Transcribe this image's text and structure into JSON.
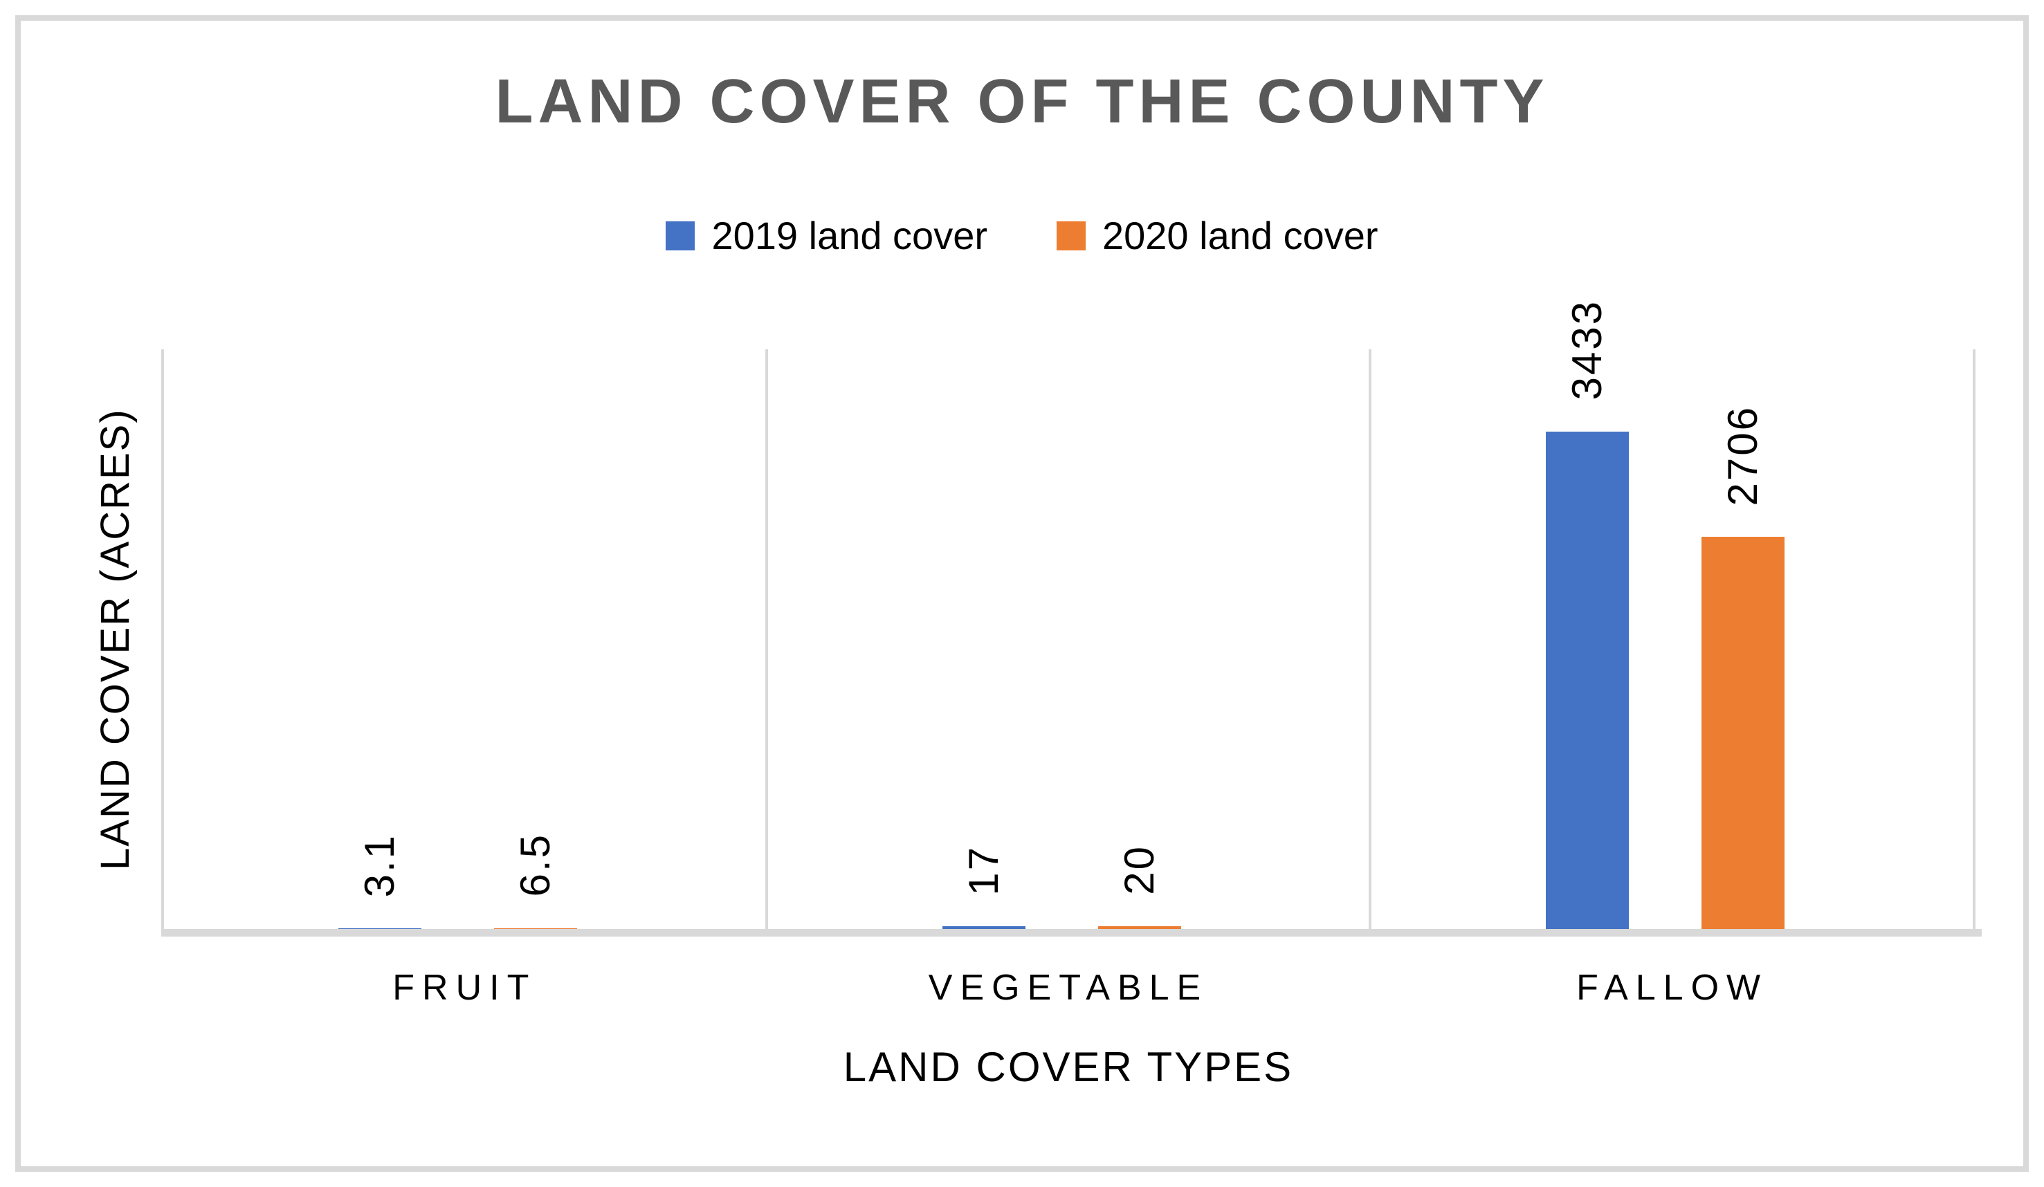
{
  "chart": {
    "title": "LAND COVER OF THE COUNTY",
    "x_axis_title": "LAND COVER TYPES",
    "y_axis_title": "LAND COVER (ACRES)"
  },
  "chart_data": {
    "type": "bar",
    "title": "LAND COVER OF THE COUNTY",
    "categories": [
      "FRUIT",
      "VEGETABLE",
      "FALLOW"
    ],
    "series": [
      {
        "name": "2019 land cover",
        "color": "#4472C4",
        "values": [
          3.1,
          17,
          3433
        ],
        "labels": [
          "3.1",
          "17",
          "3433"
        ]
      },
      {
        "name": "2020 land cover",
        "color": "#ED7D31",
        "values": [
          6.5,
          20,
          2706
        ],
        "labels": [
          "6.5",
          "20",
          "2706"
        ]
      }
    ],
    "xlabel": "LAND COVER TYPES",
    "ylabel": "LAND COVER (ACRES)",
    "ylim": [
      0,
      4000
    ],
    "grid": "vertical-category-separators",
    "legend_position": "top",
    "data_label_rotation": "vertical-bottom-to-top",
    "colors": {
      "gridline": "#D9D9D9",
      "axis_band": "#D9D9D9",
      "title_text": "#595959",
      "label_text": "#000000",
      "border": "#D9D9D9"
    }
  }
}
